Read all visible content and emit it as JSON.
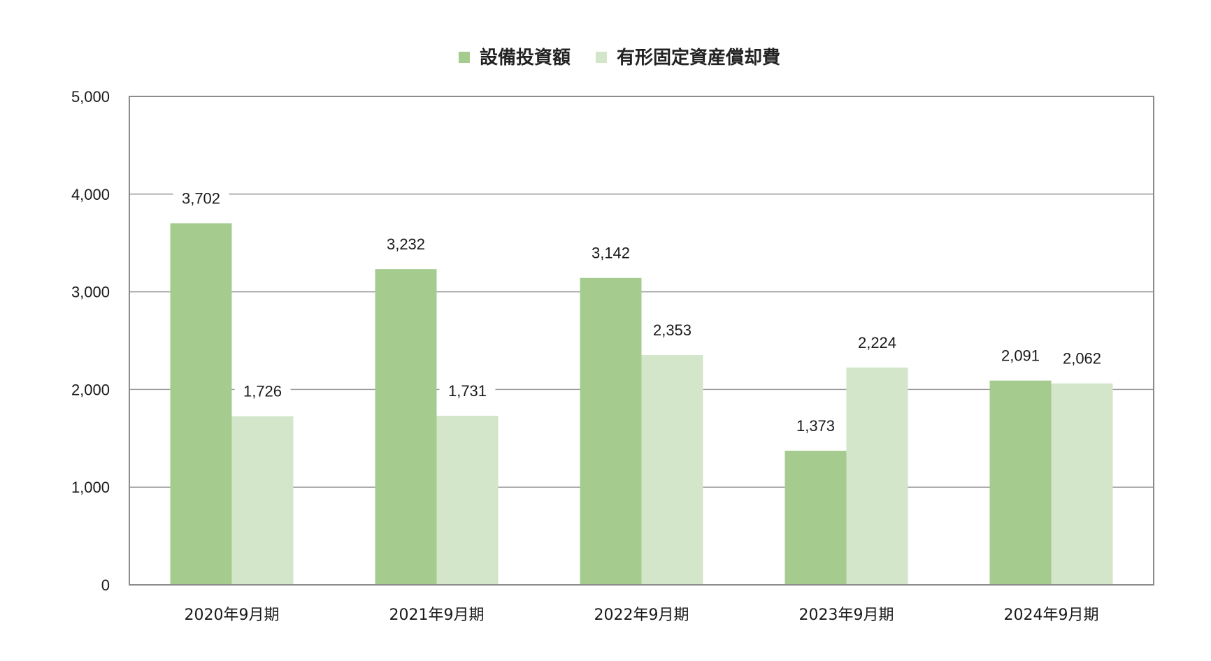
{
  "chart_data": {
    "type": "bar",
    "categories": [
      "2020年9月期",
      "2021年9月期",
      "2022年9月期",
      "2023年9月期",
      "2024年9月期"
    ],
    "series": [
      {
        "name": "設備投資額",
        "values": [
          3702,
          3232,
          3142,
          1373,
          2091
        ],
        "labels": [
          "3,702",
          "3,232",
          "3,142",
          "1,373",
          "2,091"
        ],
        "color": "#a5cc8e"
      },
      {
        "name": "有形固定資産償却費",
        "values": [
          1726,
          1731,
          2353,
          2224,
          2062
        ],
        "labels": [
          "1,726",
          "1,731",
          "2,353",
          "2,224",
          "2,062"
        ],
        "color": "#d3e6c9"
      }
    ],
    "ylim": [
      0,
      5000
    ],
    "yticks": [
      0,
      1000,
      2000,
      3000,
      4000,
      5000
    ],
    "ytick_labels": [
      "0",
      "1,000",
      "2,000",
      "3,000",
      "4,000",
      "5,000"
    ],
    "title": "",
    "xlabel": "",
    "ylabel": "",
    "grid": true,
    "legend_position": "top-center",
    "gridline_color": "#9a9a9a"
  }
}
